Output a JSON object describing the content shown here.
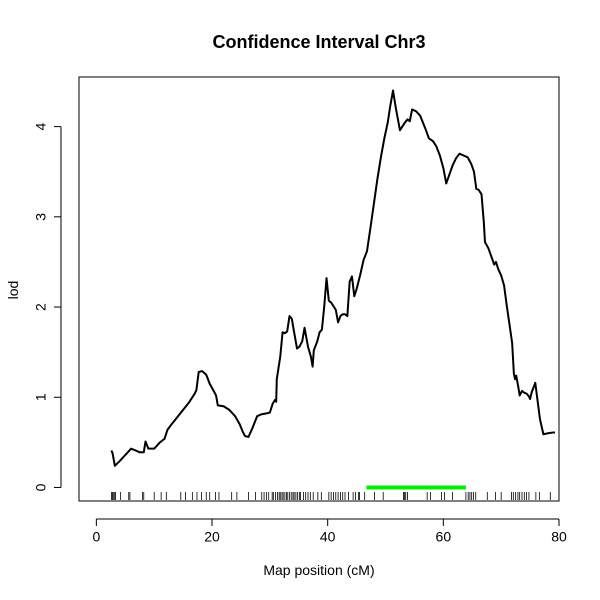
{
  "chart_data": {
    "type": "line",
    "title": "Confidence Interval Chr3",
    "xlabel": "Map position (cM)",
    "ylabel": "lod",
    "xlim": [
      -3,
      80
    ],
    "ylim": [
      -0.15,
      4.55
    ],
    "xticks": [
      0,
      20,
      40,
      60,
      80
    ],
    "yticks": [
      0,
      1,
      2,
      3,
      4
    ],
    "grid": false,
    "series": [
      {
        "color": "#000000",
        "points": [
          [
            2.6,
            0.41
          ],
          [
            2.8,
            0.38
          ],
          [
            3.2,
            0.24
          ],
          [
            4.0,
            0.29
          ],
          [
            5.0,
            0.36
          ],
          [
            6.0,
            0.43
          ],
          [
            6.8,
            0.41
          ],
          [
            7.5,
            0.39
          ],
          [
            8.2,
            0.39
          ],
          [
            8.5,
            0.51
          ],
          [
            9.0,
            0.43
          ],
          [
            10.0,
            0.43
          ],
          [
            11.0,
            0.5
          ],
          [
            11.8,
            0.54
          ],
          [
            12.3,
            0.64
          ],
          [
            13.0,
            0.7
          ],
          [
            14.0,
            0.78
          ],
          [
            15.0,
            0.86
          ],
          [
            16.0,
            0.94
          ],
          [
            17.0,
            1.04
          ],
          [
            17.3,
            1.08
          ],
          [
            17.7,
            1.28
          ],
          [
            18.3,
            1.29
          ],
          [
            19.0,
            1.25
          ],
          [
            19.6,
            1.15
          ],
          [
            20.2,
            1.08
          ],
          [
            20.7,
            1.02
          ],
          [
            21.0,
            0.91
          ],
          [
            22.0,
            0.9
          ],
          [
            23.0,
            0.86
          ],
          [
            24.0,
            0.79
          ],
          [
            24.8,
            0.7
          ],
          [
            25.3,
            0.62
          ],
          [
            25.7,
            0.57
          ],
          [
            26.3,
            0.56
          ],
          [
            27.0,
            0.66
          ],
          [
            27.8,
            0.79
          ],
          [
            28.5,
            0.81
          ],
          [
            29.3,
            0.82
          ],
          [
            30.0,
            0.83
          ],
          [
            30.5,
            0.93
          ],
          [
            30.9,
            0.97
          ],
          [
            31.1,
            0.95
          ],
          [
            31.2,
            1.2
          ],
          [
            31.8,
            1.45
          ],
          [
            32.2,
            1.72
          ],
          [
            32.6,
            1.71
          ],
          [
            33.0,
            1.73
          ],
          [
            33.4,
            1.9
          ],
          [
            33.8,
            1.87
          ],
          [
            34.2,
            1.72
          ],
          [
            34.7,
            1.54
          ],
          [
            35.1,
            1.56
          ],
          [
            35.6,
            1.62
          ],
          [
            36.0,
            1.77
          ],
          [
            36.6,
            1.56
          ],
          [
            37.1,
            1.45
          ],
          [
            37.4,
            1.34
          ],
          [
            37.6,
            1.52
          ],
          [
            38.2,
            1.62
          ],
          [
            38.6,
            1.72
          ],
          [
            39.0,
            1.75
          ],
          [
            39.4,
            2.0
          ],
          [
            39.8,
            2.32
          ],
          [
            40.2,
            2.07
          ],
          [
            40.6,
            2.05
          ],
          [
            41.0,
            2.01
          ],
          [
            41.4,
            1.97
          ],
          [
            41.8,
            1.83
          ],
          [
            42.2,
            1.9
          ],
          [
            42.6,
            1.92
          ],
          [
            43.0,
            1.92
          ],
          [
            43.4,
            1.9
          ],
          [
            43.8,
            2.28
          ],
          [
            44.2,
            2.34
          ],
          [
            44.6,
            2.12
          ],
          [
            45.0,
            2.2
          ],
          [
            45.6,
            2.35
          ],
          [
            46.2,
            2.52
          ],
          [
            46.8,
            2.62
          ],
          [
            47.4,
            2.88
          ],
          [
            48.0,
            3.15
          ],
          [
            48.6,
            3.42
          ],
          [
            49.2,
            3.66
          ],
          [
            49.8,
            3.87
          ],
          [
            50.4,
            4.05
          ],
          [
            50.8,
            4.22
          ],
          [
            51.3,
            4.4
          ],
          [
            51.8,
            4.2
          ],
          [
            52.5,
            3.96
          ],
          [
            53.2,
            4.03
          ],
          [
            53.8,
            4.08
          ],
          [
            54.2,
            4.06
          ],
          [
            54.6,
            4.19
          ],
          [
            55.3,
            4.17
          ],
          [
            56.0,
            4.12
          ],
          [
            56.5,
            4.04
          ],
          [
            57.0,
            3.96
          ],
          [
            57.5,
            3.87
          ],
          [
            58.2,
            3.84
          ],
          [
            58.8,
            3.78
          ],
          [
            59.4,
            3.68
          ],
          [
            60.0,
            3.54
          ],
          [
            60.5,
            3.37
          ],
          [
            61.0,
            3.46
          ],
          [
            61.6,
            3.57
          ],
          [
            62.2,
            3.65
          ],
          [
            62.8,
            3.7
          ],
          [
            63.5,
            3.68
          ],
          [
            64.2,
            3.66
          ],
          [
            64.8,
            3.59
          ],
          [
            65.3,
            3.5
          ],
          [
            65.7,
            3.31
          ],
          [
            66.1,
            3.3
          ],
          [
            66.6,
            3.25
          ],
          [
            67.0,
            2.94
          ],
          [
            67.2,
            2.72
          ],
          [
            67.8,
            2.65
          ],
          [
            68.3,
            2.56
          ],
          [
            68.8,
            2.47
          ],
          [
            69.1,
            2.5
          ],
          [
            69.5,
            2.42
          ],
          [
            70.0,
            2.35
          ],
          [
            70.5,
            2.24
          ],
          [
            71.0,
            2.0
          ],
          [
            71.5,
            1.78
          ],
          [
            71.9,
            1.6
          ],
          [
            72.2,
            1.26
          ],
          [
            72.4,
            1.2
          ],
          [
            72.6,
            1.24
          ],
          [
            73.0,
            1.1
          ],
          [
            73.2,
            1.02
          ],
          [
            73.6,
            1.07
          ],
          [
            74.0,
            1.05
          ],
          [
            74.4,
            1.04
          ],
          [
            74.8,
            1.01
          ],
          [
            75.0,
            0.98
          ],
          [
            75.3,
            1.06
          ],
          [
            75.9,
            1.16
          ],
          [
            76.3,
            0.96
          ],
          [
            76.7,
            0.76
          ],
          [
            77.3,
            0.59
          ],
          [
            78.0,
            0.6
          ],
          [
            79.0,
            0.61
          ],
          [
            79.3,
            0.61
          ]
        ]
      }
    ],
    "interval": {
      "from": 46.7,
      "to": 63.9,
      "y": 0,
      "color": "#00ee00"
    },
    "rug_color": "#000000",
    "markers": [
      2.6,
      2.8,
      3.0,
      3.1,
      3.3,
      4.2,
      5.6,
      5.8,
      8.0,
      8.2,
      10.0,
      11.2,
      12.1,
      14.6,
      15.4,
      16.6,
      17.4,
      18.2,
      19.0,
      19.6,
      20.6,
      21.2,
      23.4,
      24.3,
      26.3,
      27.5,
      28.6,
      29.0,
      29.4,
      29.8,
      30.4,
      30.6,
      31.0,
      31.3,
      31.6,
      31.8,
      32.1,
      32.3,
      32.6,
      32.9,
      33.1,
      33.4,
      33.7,
      34.0,
      34.2,
      34.5,
      34.8,
      35.1,
      35.3,
      35.8,
      36.2,
      36.6,
      37.0,
      37.5,
      38.3,
      38.9,
      40.2,
      40.6,
      41.0,
      41.4,
      41.8,
      42.2,
      42.6,
      43.0,
      43.6,
      44.4,
      44.8,
      45.3,
      45.5,
      46.4,
      48.1,
      49.6,
      53.1,
      53.3,
      53.5,
      53.8,
      57.2,
      57.8,
      59.7,
      60.2,
      61.6,
      63.9,
      64.3,
      64.6,
      64.9,
      65.2,
      65.6,
      67.6,
      69.0,
      70.0,
      71.8,
      72.1,
      72.5,
      72.9,
      73.2,
      73.6,
      74.0,
      74.4,
      74.8,
      76.0,
      76.6,
      78.5
    ]
  }
}
